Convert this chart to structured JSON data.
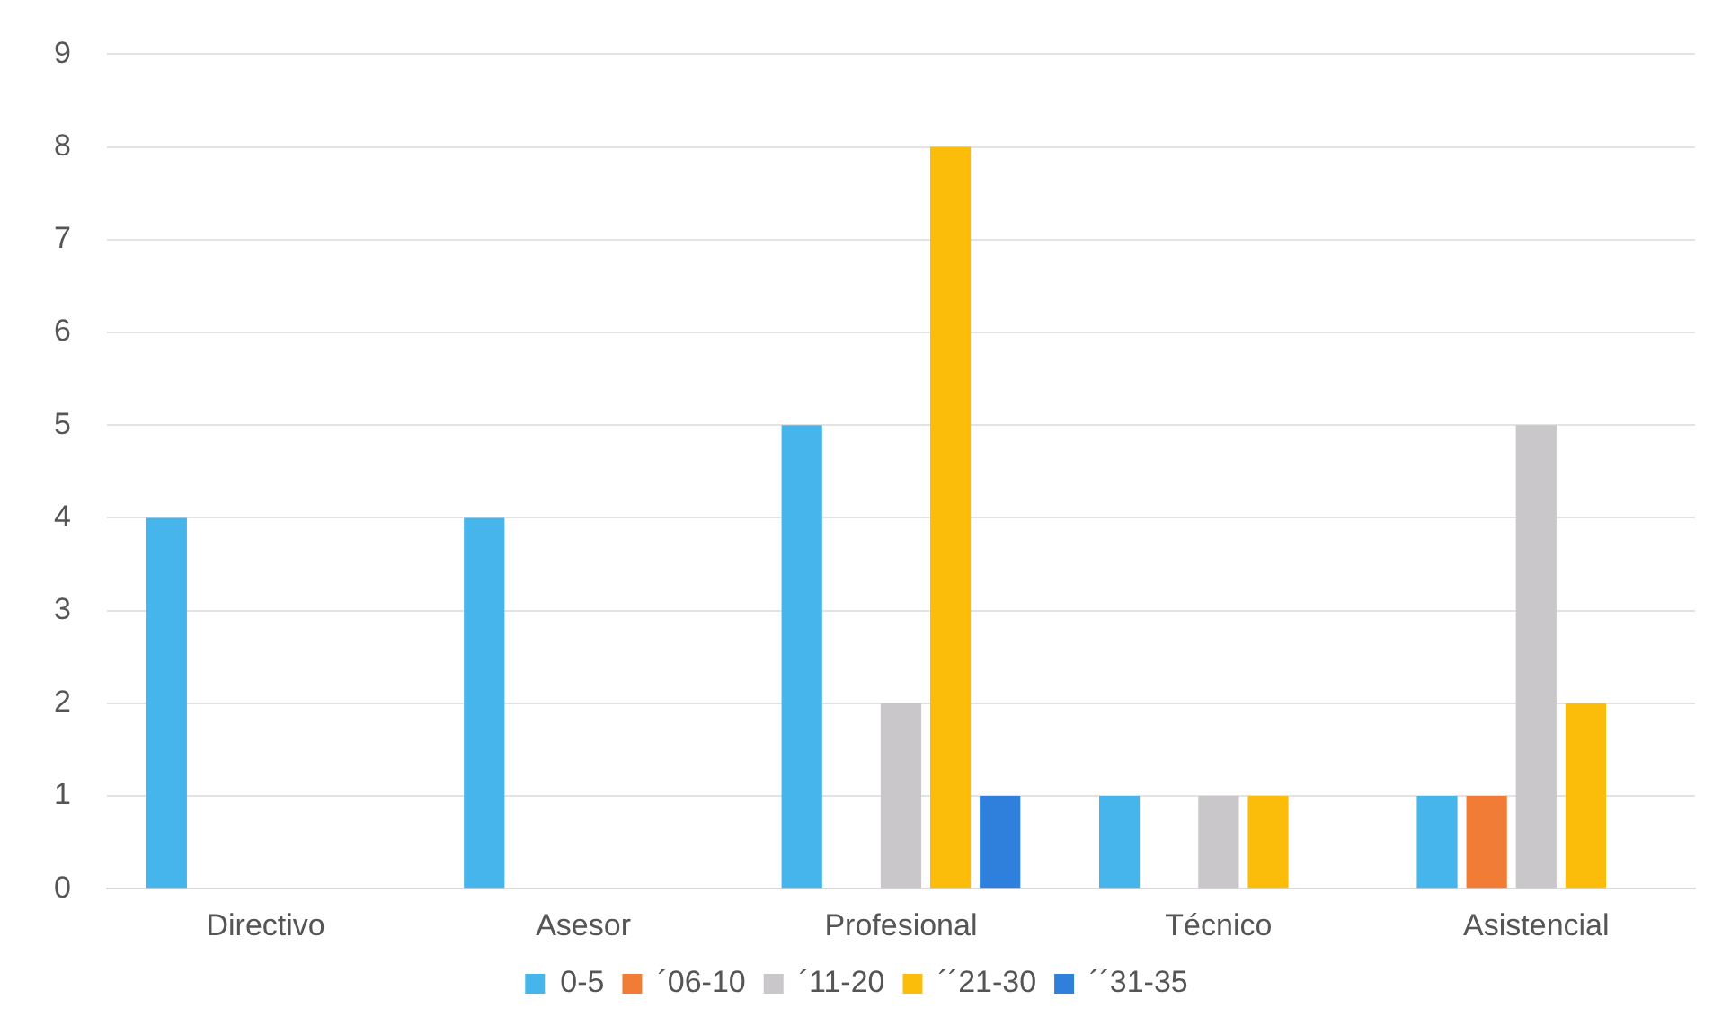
{
  "chart_data": {
    "type": "bar",
    "categories": [
      "Directivo",
      "Asesor",
      "Profesional",
      "Técnico",
      "Asistencial"
    ],
    "series": [
      {
        "name": "0-5",
        "color": "#45b5ec",
        "values": [
          4,
          4,
          5,
          1,
          1
        ]
      },
      {
        "name": "´06-10",
        "color": "#f07c35",
        "values": [
          0,
          0,
          0,
          0,
          1
        ]
      },
      {
        "name": "´11-20",
        "color": "#c9c7c9",
        "values": [
          0,
          0,
          2,
          1,
          5
        ]
      },
      {
        "name": "´´21-30",
        "color": "#fcbd0a",
        "values": [
          0,
          0,
          8,
          1,
          2
        ]
      },
      {
        "name": "´´31-35",
        "color": "#2f80dc",
        "values": [
          0,
          0,
          1,
          0,
          0
        ]
      }
    ],
    "ylim": [
      0,
      9
    ],
    "yticks": [
      0,
      1,
      2,
      3,
      4,
      5,
      6,
      7,
      8,
      9
    ],
    "grid": "y",
    "legend": "bottom"
  }
}
